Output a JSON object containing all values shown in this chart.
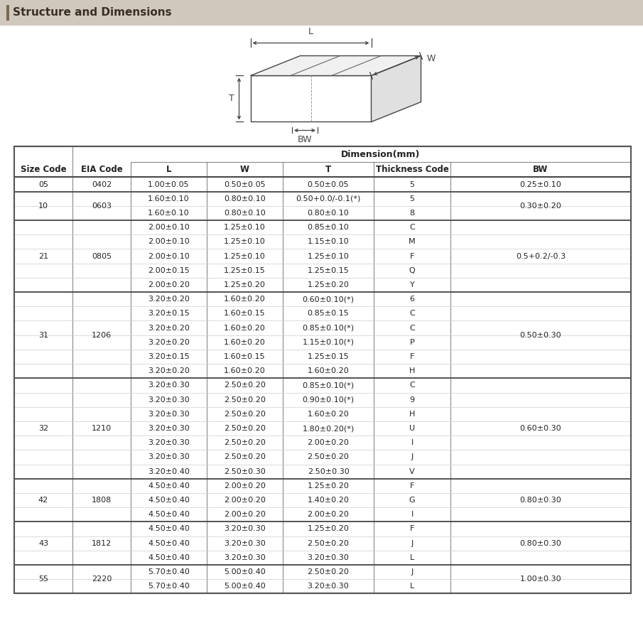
{
  "title": "Structure and Dimensions",
  "col_headers": [
    "Size Code",
    "EIA Code",
    "L",
    "W",
    "T",
    "Thickness Code",
    "BW"
  ],
  "dim_header": "Dimension(mm)",
  "rows": [
    [
      "05",
      "0402",
      "1.00±0.05",
      "0.50±0.05",
      "0.50±0.05",
      "5",
      "0.25±0.10"
    ],
    [
      "10",
      "0603",
      "1.60±0.10",
      "0.80±0.10",
      "0.50+0.0/-0.1(*)",
      "5",
      "0.30±0.20"
    ],
    [
      "",
      "",
      "1.60±0.10",
      "0.80±0.10",
      "0.80±0.10",
      "8",
      ""
    ],
    [
      "21",
      "0805",
      "2.00±0.10",
      "1.25±0.10",
      "0.85±0.10",
      "C",
      "0.5+0.2/-0.3"
    ],
    [
      "",
      "",
      "2.00±0.10",
      "1.25±0.10",
      "1.15±0.10",
      "M",
      ""
    ],
    [
      "",
      "",
      "2.00±0.10",
      "1.25±0.10",
      "1.25±0.10",
      "F",
      ""
    ],
    [
      "",
      "",
      "2.00±0.15",
      "1.25±0.15",
      "1.25±0.15",
      "Q",
      ""
    ],
    [
      "",
      "",
      "2.00±0.20",
      "1.25±0.20",
      "1.25±0.20",
      "Y",
      ""
    ],
    [
      "31",
      "1206",
      "3.20±0.20",
      "1.60±0.20",
      "0.60±0.10(*)",
      "6",
      "0.50±0.30"
    ],
    [
      "",
      "",
      "3.20±0.15",
      "1.60±0.15",
      "0.85±0.15",
      "C",
      ""
    ],
    [
      "",
      "",
      "3.20±0.20",
      "1.60±0.20",
      "0.85±0.10(*)",
      "C",
      ""
    ],
    [
      "",
      "",
      "3.20±0.20",
      "1.60±0.20",
      "1.15±0.10(*)",
      "P",
      ""
    ],
    [
      "",
      "",
      "3.20±0.15",
      "1.60±0.15",
      "1.25±0.15",
      "F",
      ""
    ],
    [
      "",
      "",
      "3.20±0.20",
      "1.60±0.20",
      "1.60±0.20",
      "H",
      ""
    ],
    [
      "32",
      "1210",
      "3.20±0.30",
      "2.50±0.20",
      "0.85±0.10(*)",
      "C",
      "0.60±0.30"
    ],
    [
      "",
      "",
      "3.20±0.30",
      "2.50±0.20",
      "0.90±0.10(*)",
      "9",
      ""
    ],
    [
      "",
      "",
      "3.20±0.30",
      "2.50±0.20",
      "1.60±0.20",
      "H",
      ""
    ],
    [
      "",
      "",
      "3.20±0.30",
      "2.50±0.20",
      "1.80±0.20(*)",
      "U",
      ""
    ],
    [
      "",
      "",
      "3.20±0.30",
      "2.50±0.20",
      "2.00±0.20",
      "I",
      ""
    ],
    [
      "",
      "",
      "3.20±0.30",
      "2.50±0.20",
      "2.50±0.20",
      "J",
      ""
    ],
    [
      "",
      "",
      "3.20±0.40",
      "2.50±0.30",
      "2.50±0.30",
      "V",
      ""
    ],
    [
      "42",
      "1808",
      "4.50±0.40",
      "2.00±0.20",
      "1.25±0.20",
      "F",
      "0.80±0.30"
    ],
    [
      "",
      "",
      "4.50±0.40",
      "2.00±0.20",
      "1.40±0.20",
      "G",
      ""
    ],
    [
      "",
      "",
      "4.50±0.40",
      "2.00±0.20",
      "2.00±0.20",
      "I",
      ""
    ],
    [
      "43",
      "1812",
      "4.50±0.40",
      "3.20±0.30",
      "1.25±0.20",
      "F",
      "0.80±0.30"
    ],
    [
      "",
      "",
      "4.50±0.40",
      "3.20±0.30",
      "2.50±0.20",
      "J",
      ""
    ],
    [
      "",
      "",
      "4.50±0.40",
      "3.20±0.30",
      "3.20±0.30",
      "L",
      ""
    ],
    [
      "55",
      "2220",
      "5.70±0.40",
      "5.00±0.40",
      "2.50±0.20",
      "J",
      "1.00±0.30"
    ],
    [
      "",
      "",
      "5.70±0.40",
      "5.00±0.40",
      "3.20±0.30",
      "L",
      ""
    ]
  ],
  "group_spans": [
    {
      "code": "05",
      "eia": "0402",
      "bw": "0.25±0.10",
      "start": 0,
      "end": 0
    },
    {
      "code": "10",
      "eia": "0603",
      "bw": "0.30±0.20",
      "start": 1,
      "end": 2
    },
    {
      "code": "21",
      "eia": "0805",
      "bw": "0.5+0.2/-0.3",
      "start": 3,
      "end": 7
    },
    {
      "code": "31",
      "eia": "1206",
      "bw": "0.50±0.30",
      "start": 8,
      "end": 13
    },
    {
      "code": "32",
      "eia": "1210",
      "bw": "0.60±0.30",
      "start": 14,
      "end": 20
    },
    {
      "code": "42",
      "eia": "1808",
      "bw": "0.80±0.30",
      "start": 21,
      "end": 23
    },
    {
      "code": "43",
      "eia": "1812",
      "bw": "0.80±0.30",
      "start": 24,
      "end": 26
    },
    {
      "code": "55",
      "eia": "2220",
      "bw": "1.00±0.30",
      "start": 27,
      "end": 28
    }
  ],
  "title_bg": "#d0c8bc",
  "title_accent": "#7a6850",
  "title_color": "#3a2e22",
  "edge_color": "#555555",
  "line_color": "#888888",
  "thick_line_color": "#444444",
  "text_color": "#222222"
}
